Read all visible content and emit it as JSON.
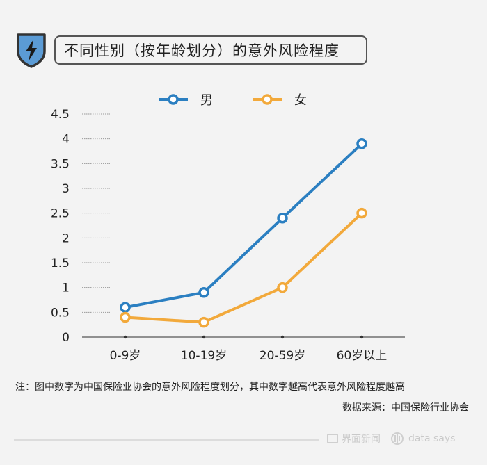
{
  "header": {
    "title": "不同性别（按年龄划分）的意外风险程度",
    "icon": "lightning-shield-icon",
    "icon_color": "#5b9bd5"
  },
  "chart_data": {
    "type": "line",
    "categories": [
      "0-9岁",
      "10-19岁",
      "20-59岁",
      "60岁以上"
    ],
    "series": [
      {
        "name": "男",
        "values": [
          0.6,
          0.9,
          2.4,
          3.9
        ],
        "color": "#2b7fc1"
      },
      {
        "name": "女",
        "values": [
          0.4,
          0.3,
          1.0,
          2.5
        ],
        "color": "#f2a93b"
      }
    ],
    "yticks": [
      "0",
      "0.5",
      "1",
      "1.5",
      "2",
      "2.5",
      "3",
      "3.5",
      "4",
      "4.5"
    ],
    "ylim": [
      0,
      4.5
    ],
    "grid": true,
    "legend": "top"
  },
  "note": "注：图中数字为中国保险业协会的意外风险程度划分，其中数字越高代表意外风险程度越高",
  "source": "数据来源：中国保险行业协会",
  "footer": {
    "brand": "界面新闻",
    "tag": "data says"
  }
}
